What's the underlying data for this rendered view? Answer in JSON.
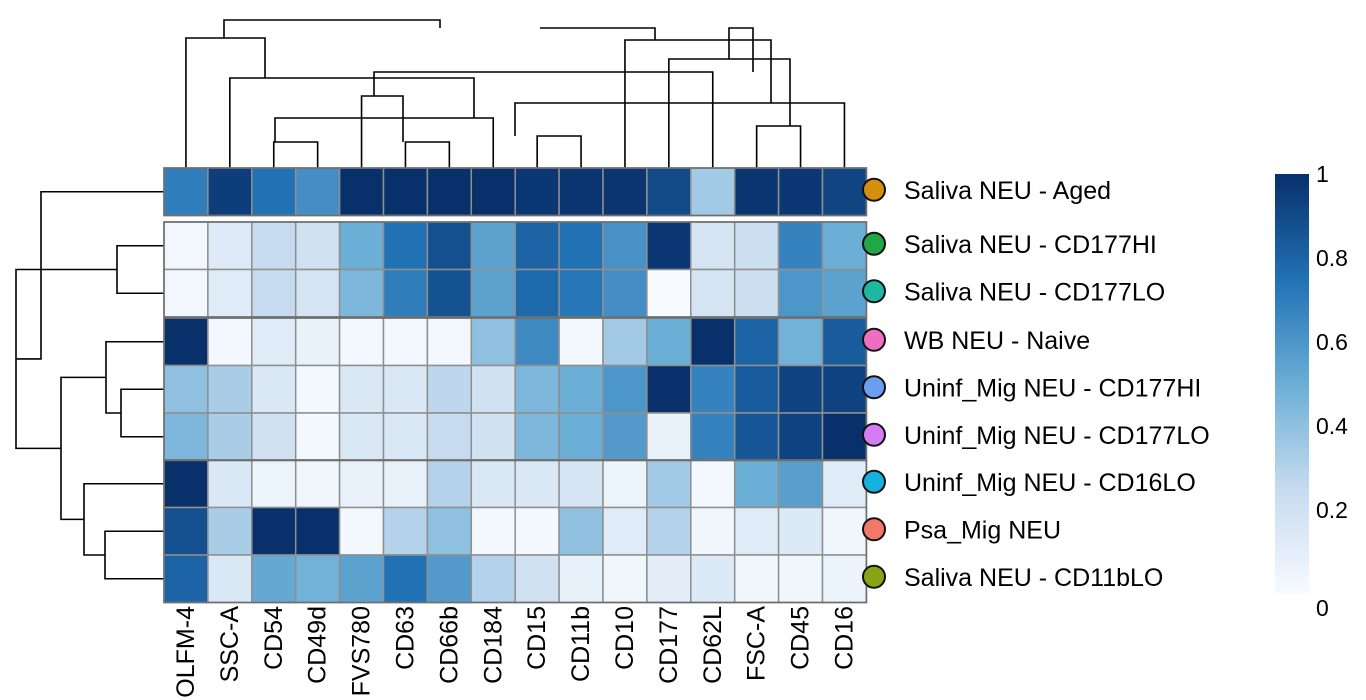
{
  "chart_data": {
    "type": "heatmap",
    "title": "",
    "columns": [
      "OLFM-4",
      "SSC-A",
      "CD54",
      "CD49d",
      "FVS780",
      "CD63",
      "CD66b",
      "CD184",
      "CD15",
      "CD11b",
      "CD10",
      "CD177",
      "CD62L",
      "FSC-A",
      "CD45",
      "CD16"
    ],
    "rows": [
      {
        "label": "Saliva NEU - Aged",
        "color": "#d4900d",
        "values": [
          0.7,
          0.95,
          0.75,
          0.63,
          1.0,
          1.0,
          1.0,
          1.0,
          0.97,
          0.98,
          0.98,
          0.9,
          0.35,
          0.98,
          0.97,
          0.92
        ]
      },
      {
        "label": "Saliva NEU - CD177HI",
        "color": "#1fa845",
        "values": [
          0.03,
          0.13,
          0.25,
          0.2,
          0.5,
          0.75,
          0.88,
          0.55,
          0.8,
          0.75,
          0.62,
          0.97,
          0.18,
          0.22,
          0.68,
          0.5
        ]
      },
      {
        "label": "Saliva NEU - CD177LO",
        "color": "#1cb8a0",
        "values": [
          0.03,
          0.12,
          0.25,
          0.18,
          0.45,
          0.7,
          0.87,
          0.55,
          0.78,
          0.73,
          0.63,
          0.0,
          0.18,
          0.22,
          0.6,
          0.55
        ]
      },
      {
        "label": "WB NEU - Naive",
        "color": "#f06ec2",
        "values": [
          1.0,
          0.02,
          0.12,
          0.07,
          0.02,
          0.02,
          0.02,
          0.4,
          0.65,
          0.02,
          0.35,
          0.5,
          1.0,
          0.8,
          0.48,
          0.83
        ]
      },
      {
        "label": "Uninf_Mig NEU - CD177HI",
        "color": "#6c9ef0",
        "values": [
          0.4,
          0.33,
          0.15,
          0.02,
          0.15,
          0.15,
          0.27,
          0.2,
          0.45,
          0.5,
          0.6,
          1.0,
          0.68,
          0.83,
          0.93,
          0.93
        ]
      },
      {
        "label": "Uninf_Mig NEU - CD177LO",
        "color": "#d37cf3",
        "values": [
          0.45,
          0.33,
          0.2,
          0.02,
          0.15,
          0.15,
          0.25,
          0.2,
          0.45,
          0.5,
          0.58,
          0.07,
          0.68,
          0.85,
          0.93,
          1.0
        ]
      },
      {
        "label": "Uninf_Mig NEU - CD16LO",
        "color": "#17b1e0",
        "values": [
          1.0,
          0.15,
          0.05,
          0.04,
          0.07,
          0.07,
          0.3,
          0.15,
          0.15,
          0.17,
          0.05,
          0.35,
          0.02,
          0.5,
          0.56,
          0.12
        ]
      },
      {
        "label": "Psa_Mig NEU",
        "color": "#f47868",
        "values": [
          0.88,
          0.33,
          1.0,
          1.0,
          0.02,
          0.3,
          0.4,
          0.02,
          0.02,
          0.4,
          0.12,
          0.3,
          0.04,
          0.12,
          0.14,
          0.04
        ]
      },
      {
        "label": "Saliva NEU - CD11bLO",
        "color": "#8aa316",
        "values": [
          0.8,
          0.15,
          0.52,
          0.48,
          0.55,
          0.75,
          0.58,
          0.3,
          0.2,
          0.08,
          0.04,
          0.1,
          0.14,
          0.04,
          0.04,
          0.06
        ]
      }
    ],
    "row_blocks": [
      [
        0
      ],
      [
        1,
        2
      ],
      [
        3,
        4,
        5
      ],
      [
        6,
        7,
        8
      ]
    ],
    "colorbar": {
      "min": 0,
      "max": 1,
      "ticks": [
        "1",
        "0.8",
        "0.6",
        "0.4",
        "0.2",
        "0"
      ],
      "tick_values": [
        1,
        0.8,
        0.6,
        0.4,
        0.2,
        0
      ],
      "stops": [
        "#f7fbff",
        "#c6dbef",
        "#6baed6",
        "#2171b5",
        "#08306b"
      ]
    },
    "col_dendrogram": [
      [
        2,
        3
      ],
      [
        5,
        6
      ],
      [
        8,
        9
      ],
      [
        7,
        16
      ],
      [
        4,
        17
      ],
      [
        13,
        14
      ],
      [
        18,
        15
      ],
      [
        12,
        20
      ],
      [
        11,
        21
      ],
      [
        1,
        19
      ],
      [
        10,
        22
      ],
      [
        23,
        24
      ],
      [
        0,
        25
      ],
      [
        26,
        27
      ],
      [
        28,
        29
      ]
    ],
    "row_dendrogram": [
      [
        1,
        2
      ],
      [
        4,
        5
      ],
      [
        3,
        10
      ],
      [
        7,
        8
      ],
      [
        6,
        12
      ],
      [
        11,
        13
      ],
      [
        9,
        14
      ],
      [
        0,
        15
      ]
    ]
  }
}
